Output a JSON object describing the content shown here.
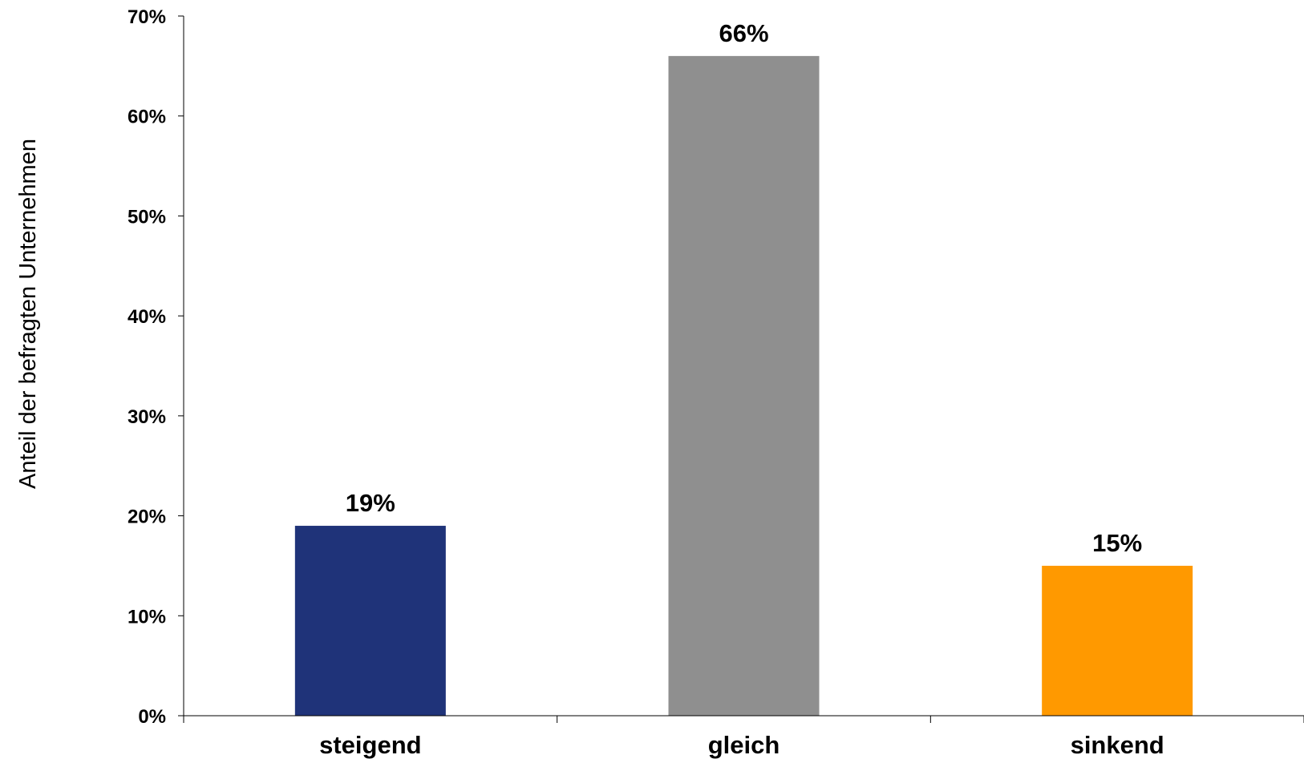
{
  "chart_data": {
    "type": "bar",
    "title": "",
    "xlabel": "",
    "ylabel": "Anteil der befragten Unternehmen",
    "categories": [
      "steigend",
      "gleich",
      "sinkend"
    ],
    "values": [
      19,
      66,
      15
    ],
    "value_labels": [
      "19%",
      "66%",
      "15%"
    ],
    "colors": [
      "#1F3379",
      "#8F8F8F",
      "#FF9900"
    ],
    "ylim": [
      0,
      70
    ],
    "yticks": [
      0,
      10,
      20,
      30,
      40,
      50,
      60,
      70
    ],
    "ytick_labels": [
      "0%",
      "10%",
      "20%",
      "30%",
      "40%",
      "50%",
      "60%",
      "70%"
    ],
    "grid": false,
    "legend": "none"
  }
}
